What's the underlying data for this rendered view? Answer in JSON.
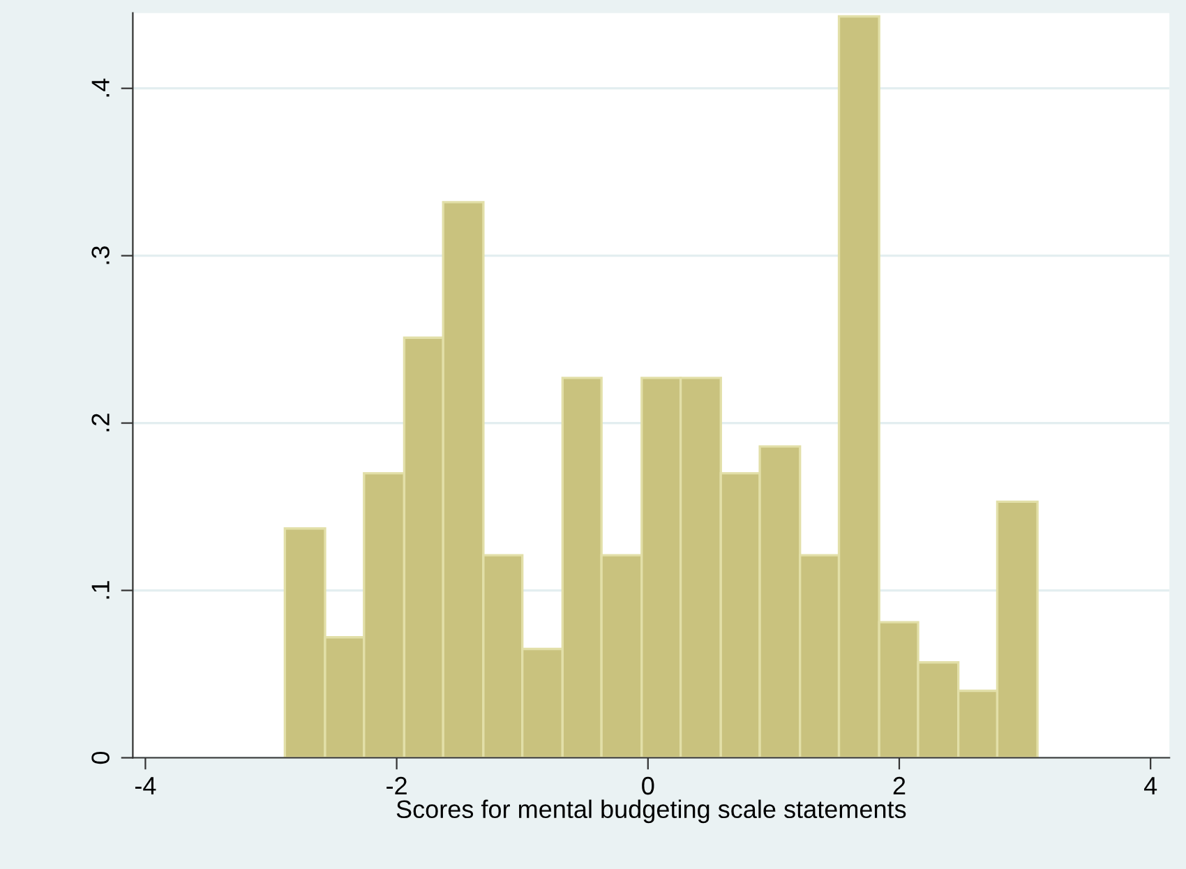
{
  "chart_data": {
    "type": "histogram",
    "xlabel": "Scores for mental budgeting scale statements",
    "bins": [
      -2.89,
      -2.57,
      -2.26,
      -1.94,
      -1.63,
      -1.31,
      -1.0,
      -0.68,
      -0.37,
      -0.05,
      0.26,
      0.58,
      0.89,
      1.21,
      1.52,
      1.84,
      2.15,
      2.47,
      2.78,
      3.1
    ],
    "values": [
      0.137,
      0.072,
      0.17,
      0.251,
      0.332,
      0.121,
      0.065,
      0.227,
      0.121,
      0.227,
      0.227,
      0.17,
      0.186,
      0.121,
      0.443,
      0.081,
      0.057,
      0.04,
      0.153
    ],
    "color": "#c9c27e",
    "xlim": [
      -4.1,
      4.15
    ],
    "xticks": [
      -4,
      -2,
      0,
      2,
      4
    ],
    "ylim": [
      0,
      0.445
    ],
    "yticks": [
      0,
      {
        "value": 0.1,
        "label": ".1"
      },
      {
        "value": 0.2,
        "label": ".2"
      },
      {
        "value": 0.3,
        "label": ".3"
      },
      {
        "value": 0.4,
        "label": ".4"
      }
    ],
    "grid": "y"
  }
}
